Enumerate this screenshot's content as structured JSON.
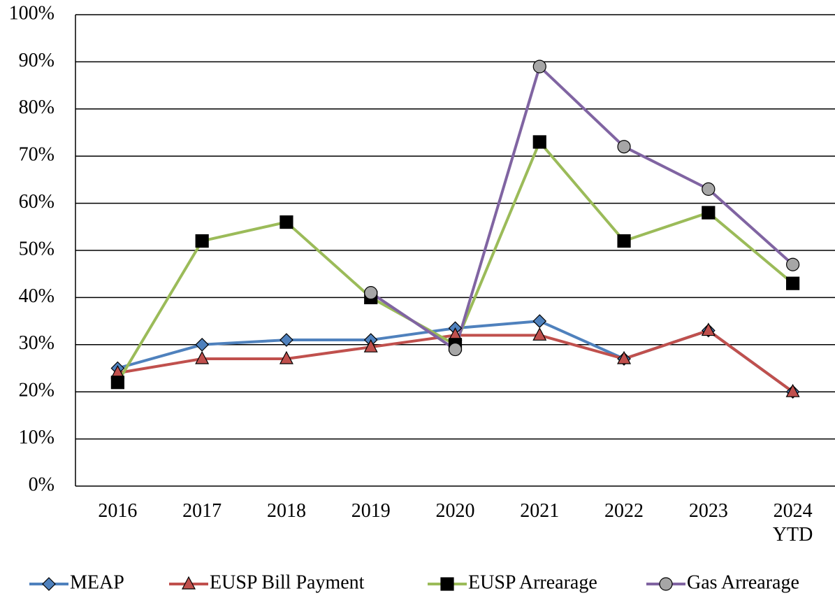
{
  "chart_data": {
    "type": "line",
    "categories": [
      "2016",
      "2017",
      "2018",
      "2019",
      "2020",
      "2021",
      "2022",
      "2023",
      "2024\nYTD"
    ],
    "series": [
      {
        "name": "MEAP",
        "color": "#4f81bd",
        "marker": "diamond",
        "marker_color": "#4f81bd",
        "values": [
          25,
          30,
          31,
          31,
          33.5,
          35,
          27,
          33,
          20
        ]
      },
      {
        "name": "EUSP Bill Payment",
        "color": "#c0504d",
        "marker": "triangle",
        "marker_color": "#c0504d",
        "values": [
          24,
          27,
          27,
          29.5,
          32,
          32,
          27,
          33,
          20
        ]
      },
      {
        "name": "EUSP Arrearage",
        "color": "#9bbb59",
        "marker": "square",
        "marker_color": "#000000",
        "values": [
          22,
          52,
          56,
          40,
          30,
          73,
          52,
          58,
          43
        ]
      },
      {
        "name": "Gas Arrearage",
        "color": "#8064a2",
        "marker": "circle",
        "marker_color": "#a6a6a6",
        "values": [
          null,
          null,
          null,
          41,
          29,
          89,
          72,
          63,
          47
        ]
      }
    ],
    "ylim": [
      0,
      100
    ],
    "yticks": [
      {
        "value": 0,
        "label": "0%"
      },
      {
        "value": 10,
        "label": "10%"
      },
      {
        "value": 20,
        "label": "20%"
      },
      {
        "value": 30,
        "label": "30%"
      },
      {
        "value": 40,
        "label": "40%"
      },
      {
        "value": 50,
        "label": "50%"
      },
      {
        "value": 60,
        "label": "60%"
      },
      {
        "value": 70,
        "label": "70%"
      },
      {
        "value": 80,
        "label": "80%"
      },
      {
        "value": 90,
        "label": "90%"
      },
      {
        "value": 100,
        "label": "100%"
      }
    ],
    "grid": true,
    "legend": "bottom"
  }
}
